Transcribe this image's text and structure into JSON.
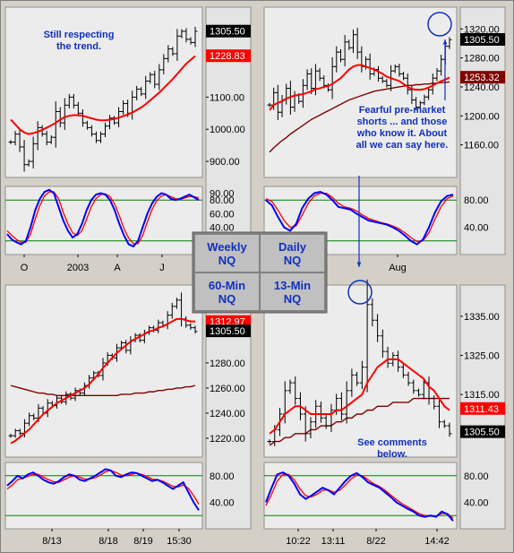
{
  "colors": {
    "background": "#d4d0c8",
    "plot_bg": "#ececec",
    "bars": "#000000",
    "ma_short": "#ff0000",
    "ma_long": "#800000",
    "stoch_k": "#0000ff",
    "stoch_d": "#ff0000",
    "stoch_levels": "#008000",
    "annotation": "#1030c0",
    "last_price_bg": "#000000",
    "ma_label_bg": "#ff0000",
    "ma_label_dark_bg": "#800000",
    "legend_text": "#1030c0"
  },
  "timeframe_legend": {
    "weekly": "Weekly\nNQ",
    "daily": "Daily\nNQ",
    "min60": "60-Min\nNQ",
    "min13": "13-Min\nNQ"
  },
  "chart_data": [
    {
      "type": "ohlc",
      "panel": "weekly",
      "ylim": [
        850,
        1380
      ],
      "y_ticks": [
        "900.00",
        "1000.00",
        "1100.00"
      ],
      "x_ticks": [
        "O",
        "2003",
        "A",
        "J"
      ],
      "price_labels": [
        {
          "text": "1305.50",
          "value": 1305.5,
          "style": "last"
        },
        {
          "text": "1228.83",
          "value": 1228.83,
          "style": "ma"
        }
      ],
      "close": [
        960,
        985,
        945,
        890,
        900,
        955,
        1005,
        985,
        960,
        975,
        1055,
        1020,
        1075,
        1100,
        1075,
        1050,
        1020,
        1005,
        985,
        965,
        985,
        1010,
        1035,
        1020,
        1055,
        1080,
        1050,
        1100,
        1125,
        1110,
        1150,
        1170,
        1140,
        1185,
        1220,
        1250,
        1235,
        1290,
        1305,
        1280,
        1270,
        1305
      ],
      "ma": [
        1030,
        1015,
        1000,
        990,
        985,
        988,
        992,
        998,
        1005,
        1012,
        1020,
        1030,
        1038,
        1042,
        1044,
        1044,
        1042,
        1038,
        1034,
        1030,
        1028,
        1028,
        1030,
        1032,
        1036,
        1041,
        1046,
        1052,
        1060,
        1068,
        1078,
        1090,
        1102,
        1114,
        1128,
        1142,
        1156,
        1172,
        1188,
        1204,
        1216,
        1228
      ],
      "annotations": [
        "Still respecting\nthe trend."
      ],
      "oscillator": {
        "ylim": [
          0,
          100
        ],
        "levels": [
          80,
          20
        ],
        "y_ticks": [
          "90.00",
          "80.00",
          "60.00",
          "40.00"
        ],
        "k": [
          30,
          22,
          18,
          15,
          20,
          40,
          65,
          82,
          92,
          95,
          90,
          70,
          50,
          35,
          25,
          30,
          45,
          65,
          80,
          88,
          90,
          88,
          80,
          65,
          45,
          28,
          15,
          12,
          20,
          40,
          60,
          75,
          85,
          90,
          88,
          82,
          80,
          82,
          85,
          88,
          84,
          80
        ],
        "d": [
          35,
          28,
          22,
          18,
          18,
          30,
          52,
          72,
          86,
          92,
          92,
          82,
          62,
          45,
          32,
          28,
          35,
          52,
          70,
          82,
          88,
          89,
          85,
          74,
          57,
          38,
          24,
          16,
          16,
          28,
          48,
          66,
          79,
          86,
          88,
          85,
          82,
          81,
          83,
          85,
          85,
          83
        ]
      }
    },
    {
      "type": "ohlc",
      "panel": "daily",
      "ylim": [
        1115,
        1350
      ],
      "y_ticks": [
        "1320.00",
        "1280.00",
        "1240.00",
        "1200.00",
        "1160.00"
      ],
      "x_ticks": [
        "Aug"
      ],
      "price_labels": [
        {
          "text": "1305.50",
          "value": 1305.5,
          "style": "last"
        },
        {
          "text": "1253.32",
          "value": 1253.32,
          "style": "ma_dark"
        }
      ],
      "close": [
        1215,
        1232,
        1205,
        1222,
        1238,
        1212,
        1228,
        1220,
        1242,
        1258,
        1238,
        1262,
        1252,
        1242,
        1236,
        1268,
        1288,
        1278,
        1302,
        1294,
        1312,
        1288,
        1268,
        1278,
        1258,
        1264,
        1252,
        1248,
        1242,
        1262,
        1268,
        1258,
        1252,
        1236,
        1222,
        1212,
        1218,
        1226,
        1236,
        1252,
        1262,
        1278,
        1296,
        1305
      ],
      "ma": [
        1208,
        1215,
        1218,
        1220,
        1224,
        1226,
        1228,
        1229,
        1230,
        1232,
        1234,
        1237,
        1238,
        1240,
        1241,
        1244,
        1248,
        1252,
        1258,
        1264,
        1268,
        1270,
        1270,
        1268,
        1266,
        1264,
        1261,
        1258,
        1254,
        1252,
        1250,
        1248,
        1244,
        1240,
        1237,
        1236,
        1236,
        1237,
        1239,
        1242,
        1245,
        1248,
        1250,
        1253
      ],
      "ma2": [
        1150,
        1156,
        1161,
        1166,
        1170,
        1175,
        1179,
        1183,
        1187,
        1191,
        1195,
        1198,
        1201,
        1204,
        1207,
        1210,
        1213,
        1216,
        1219,
        1222,
        1224,
        1226,
        1228,
        1230,
        1232,
        1234,
        1235,
        1236,
        1237,
        1238,
        1239,
        1240,
        1241,
        1242,
        1242,
        1243,
        1243,
        1244,
        1244,
        1245,
        1245,
        1246,
        1246,
        1247
      ],
      "annotations": [
        "Fearful pre-market\nshorts ... and those\nwho know it.  About\nall we can say here."
      ],
      "oscillator": {
        "ylim": [
          0,
          100
        ],
        "levels": [
          80,
          20
        ],
        "y_ticks": [
          "80.00",
          "40.00"
        ],
        "k": [
          80,
          72,
          55,
          40,
          35,
          45,
          68,
          82,
          90,
          92,
          88,
          80,
          70,
          68,
          66,
          60,
          55,
          50,
          48,
          46,
          44,
          40,
          35,
          28,
          20,
          15,
          22,
          40,
          62,
          78,
          86,
          88
        ],
        "d": [
          82,
          78,
          65,
          50,
          40,
          42,
          58,
          75,
          86,
          90,
          90,
          84,
          75,
          70,
          68,
          64,
          58,
          53,
          50,
          47,
          45,
          42,
          38,
          32,
          25,
          19,
          20,
          32,
          52,
          70,
          82,
          86
        ]
      }
    },
    {
      "type": "ohlc",
      "panel": "60-min",
      "ylim": [
        1205,
        1342
      ],
      "y_ticks": [
        "1280.00",
        "1260.00",
        "1240.00",
        "1220.00"
      ],
      "x_ticks": [
        "8/13",
        "8/18",
        "8/19",
        "15:30"
      ],
      "price_labels": [
        {
          "text": "1312.97",
          "value": 1312.97,
          "style": "ma"
        },
        {
          "text": "1305.50",
          "value": 1305.5,
          "style": "last"
        }
      ],
      "close": [
        1222,
        1226,
        1224,
        1232,
        1238,
        1236,
        1244,
        1240,
        1248,
        1246,
        1252,
        1249,
        1255,
        1252,
        1258,
        1256,
        1262,
        1268,
        1272,
        1270,
        1280,
        1286,
        1284,
        1292,
        1296,
        1290,
        1298,
        1302,
        1298,
        1304,
        1308,
        1306,
        1312,
        1310,
        1318,
        1325,
        1330,
        1315,
        1310,
        1308,
        1305
      ],
      "ma": [
        1216,
        1218,
        1221,
        1224,
        1227,
        1231,
        1235,
        1239,
        1242,
        1245,
        1248,
        1250,
        1252,
        1254,
        1256,
        1258,
        1260,
        1263,
        1267,
        1271,
        1276,
        1280,
        1284,
        1288,
        1291,
        1294,
        1297,
        1299,
        1301,
        1303,
        1305,
        1306,
        1308,
        1309,
        1311,
        1313,
        1315,
        1315,
        1314,
        1313,
        1313
      ],
      "ma2": [
        1262,
        1261,
        1260,
        1259,
        1258,
        1257,
        1256,
        1256,
        1255,
        1255,
        1254,
        1254,
        1254,
        1254,
        1254,
        1254,
        1254,
        1254,
        1254,
        1254,
        1254,
        1254,
        1254,
        1254,
        1255,
        1255,
        1255,
        1256,
        1256,
        1256,
        1257,
        1257,
        1258,
        1258,
        1259,
        1259,
        1260,
        1260,
        1261,
        1261,
        1262
      ],
      "oscillator": {
        "ylim": [
          0,
          100
        ],
        "levels": [
          80,
          20
        ],
        "y_ticks": [
          "80.00",
          "40.00"
        ],
        "k": [
          65,
          72,
          80,
          76,
          82,
          85,
          80,
          74,
          70,
          68,
          72,
          78,
          82,
          80,
          74,
          72,
          76,
          80,
          85,
          90,
          88,
          80,
          78,
          82,
          85,
          84,
          80,
          76,
          72,
          74,
          70,
          65,
          60,
          65,
          70,
          55,
          40,
          28
        ],
        "d": [
          60,
          66,
          74,
          76,
          79,
          82,
          82,
          78,
          74,
          71,
          70,
          74,
          78,
          80,
          78,
          75,
          75,
          77,
          81,
          86,
          88,
          85,
          81,
          80,
          82,
          84,
          82,
          79,
          75,
          74,
          72,
          68,
          64,
          63,
          66,
          61,
          50,
          37
        ]
      }
    },
    {
      "type": "ohlc",
      "panel": "13-min",
      "ylim": [
        1299,
        1343
      ],
      "y_ticks": [
        "1335.00",
        "1325.00",
        "1315.00"
      ],
      "x_ticks": [
        "10:22",
        "13:11",
        "8/22",
        "14:42"
      ],
      "price_labels": [
        {
          "text": "1311.43",
          "value": 1311.43,
          "style": "ma"
        },
        {
          "text": "1305.50",
          "value": 1305.5,
          "style": "last"
        }
      ],
      "close": [
        1303,
        1306,
        1310,
        1316,
        1318,
        1314,
        1310,
        1305,
        1308,
        1312,
        1309,
        1307,
        1311,
        1314,
        1310,
        1316,
        1320,
        1318,
        1322,
        1338,
        1334,
        1330,
        1326,
        1323,
        1325,
        1322,
        1320,
        1318,
        1316,
        1315,
        1318,
        1314,
        1312,
        1308,
        1307,
        1305
      ],
      "ma": [
        1305,
        1306,
        1308,
        1310,
        1311,
        1312,
        1312,
        1311,
        1310,
        1310,
        1310,
        1310,
        1310,
        1311,
        1311,
        1312,
        1313,
        1314,
        1315,
        1318,
        1320,
        1322,
        1323,
        1324,
        1324,
        1324,
        1323,
        1322,
        1321,
        1320,
        1319,
        1317,
        1316,
        1314,
        1312,
        1311
      ],
      "ma2": [
        1302,
        1303,
        1303,
        1304,
        1304,
        1305,
        1305,
        1305,
        1306,
        1306,
        1307,
        1307,
        1307,
        1308,
        1308,
        1309,
        1309,
        1310,
        1310,
        1311,
        1311,
        1312,
        1312,
        1312,
        1313,
        1313,
        1313,
        1313,
        1314,
        1314,
        1314,
        1314,
        1314,
        1314,
        1314,
        1314
      ],
      "annotations": [
        "See comments\nbelow."
      ],
      "oscillator": {
        "ylim": [
          0,
          100
        ],
        "levels": [
          80,
          20
        ],
        "y_ticks": [
          "80.00",
          "40.00"
        ],
        "k": [
          40,
          62,
          82,
          85,
          80,
          68,
          52,
          45,
          50,
          56,
          62,
          58,
          52,
          62,
          72,
          80,
          84,
          78,
          70,
          66,
          62,
          55,
          48,
          40,
          35,
          30,
          26,
          20,
          18,
          20,
          18,
          26,
          22,
          12
        ],
        "d": [
          35,
          52,
          72,
          82,
          82,
          74,
          60,
          50,
          48,
          52,
          58,
          59,
          55,
          58,
          66,
          75,
          81,
          80,
          74,
          68,
          64,
          58,
          51,
          44,
          38,
          33,
          28,
          23,
          20,
          19,
          19,
          23,
          23,
          16
        ]
      }
    }
  ]
}
